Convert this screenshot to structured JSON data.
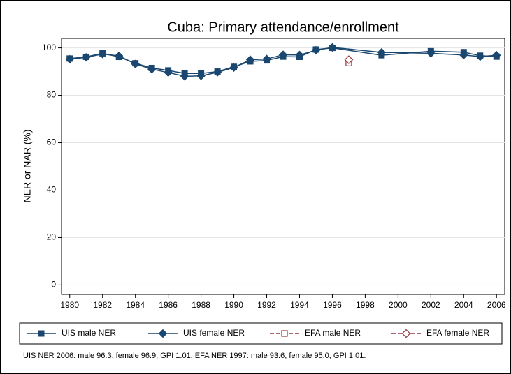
{
  "chart_data": {
    "type": "line",
    "title": "Cuba: Primary attendance/enrollment",
    "y_label": "NER or NAR (%)",
    "note": "UIS NER 2006: male 96.3, female 96.9, GPI 1.01. EFA NER 1997: male 93.6, female 95.0, GPI 1.01.",
    "xlim": [
      1979.5,
      2006.5
    ],
    "ylim": [
      -4,
      104
    ],
    "xticks": [
      1980,
      1982,
      1984,
      1986,
      1988,
      1990,
      1992,
      1994,
      1996,
      1998,
      2000,
      2002,
      2004,
      2006
    ],
    "yticks": [
      0,
      20,
      40,
      60,
      80,
      100
    ],
    "series": [
      {
        "name": "UIS male NER",
        "color": "#1a476f",
        "marker": "square",
        "dashed": false,
        "x": [
          1980,
          1981,
          1982,
          1983,
          1984,
          1985,
          1986,
          1987,
          1988,
          1989,
          1990,
          1991,
          1992,
          1993,
          1994,
          1995,
          1996,
          1999,
          2002,
          2004,
          2005,
          2006
        ],
        "values": [
          95.5,
          96.2,
          97.7,
          96.2,
          93.5,
          91.5,
          90.5,
          89.2,
          89.2,
          90,
          92,
          94.3,
          94.7,
          96.3,
          96.2,
          99.3,
          100,
          96.9,
          98.6,
          98.2,
          96.7,
          96.3
        ]
      },
      {
        "name": "UIS female NER",
        "color": "#1a476f",
        "marker": "diamond",
        "dashed": false,
        "x": [
          1980,
          1981,
          1982,
          1983,
          1984,
          1985,
          1986,
          1987,
          1988,
          1989,
          1990,
          1991,
          1992,
          1993,
          1994,
          1995,
          1996,
          1999,
          2002,
          2004,
          2005,
          2006
        ],
        "values": [
          95.2,
          96,
          97.4,
          96.6,
          93.2,
          91,
          89.6,
          88,
          88.2,
          89.7,
          91.7,
          95,
          95.3,
          97.1,
          97,
          99,
          100.2,
          98.1,
          97.7,
          97,
          96.3,
          96.9
        ]
      },
      {
        "name": "EFA male NER",
        "color": "#90353b",
        "marker": "square-hollow",
        "dashed": true,
        "x": [
          1997
        ],
        "values": [
          93.6
        ]
      },
      {
        "name": "EFA female NER",
        "color": "#90353b",
        "marker": "diamond-hollow",
        "dashed": true,
        "x": [
          1997
        ],
        "values": [
          95.0
        ]
      }
    ]
  }
}
